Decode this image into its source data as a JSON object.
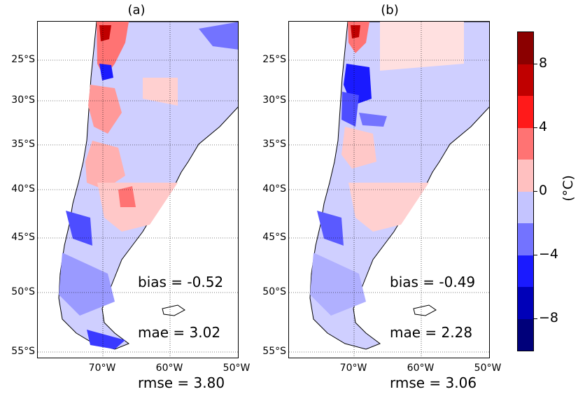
{
  "panels": [
    {
      "title": "(a)",
      "bias": "bias = -0.52",
      "mae": "mae = 3.02",
      "rmse": "rmse = 3.80"
    },
    {
      "title": "(b)",
      "bias": "bias = -0.49",
      "mae": "mae = 2.28",
      "rmse": "rmse = 3.06"
    }
  ],
  "lat_labels": [
    "25°S",
    "30°S",
    "35°S",
    "40°S",
    "45°S",
    "50°S",
    "55°S"
  ],
  "lon_labels": [
    "70°W",
    "60°W",
    "50°W"
  ],
  "colorbar": {
    "unit": "(°C)",
    "tick_labels": [
      "8",
      "4",
      "0",
      "−4",
      "−8"
    ],
    "colors": [
      "#8b0000",
      "#c00000",
      "#ff1a1a",
      "#ff7373",
      "#ffc0c0",
      "#c4c4ff",
      "#7373ff",
      "#1a1aff",
      "#0000b8",
      "#00007a"
    ]
  }
}
